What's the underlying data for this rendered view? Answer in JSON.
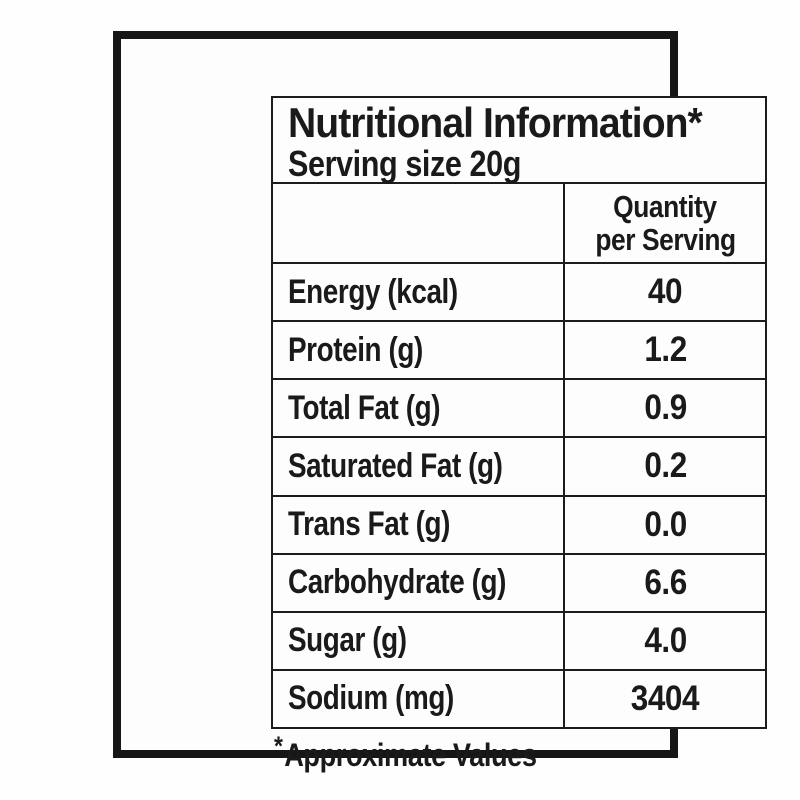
{
  "nutrition_label": {
    "title": "Nutritional Information*",
    "serving": "Serving size 20g",
    "column_header": {
      "line1": "Quantity",
      "line2": "per Serving"
    },
    "rows": [
      {
        "name": "Energy (kcal)",
        "value": "40"
      },
      {
        "name": "Protein (g)",
        "value": "1.2"
      },
      {
        "name": "Total Fat (g)",
        "value": "0.9"
      },
      {
        "name": "Saturated Fat (g)",
        "value": "0.2"
      },
      {
        "name": "Trans Fat (g)",
        "value": "0.0"
      },
      {
        "name": "Carbohydrate (g)",
        "value": "6.6"
      },
      {
        "name": "Sugar (g)",
        "value": "4.0"
      },
      {
        "name": "Sodium (mg)",
        "value": "3404"
      }
    ],
    "footnote_marker": "*",
    "footnote_text": "Approximate Values"
  },
  "chart_data": {
    "type": "table",
    "title": "Nutritional Information*",
    "subtitle": "Serving size 20g",
    "columns": [
      "",
      "Quantity per Serving"
    ],
    "rows": [
      [
        "Energy (kcal)",
        40
      ],
      [
        "Protein (g)",
        1.2
      ],
      [
        "Total Fat (g)",
        0.9
      ],
      [
        "Saturated Fat (g)",
        0.2
      ],
      [
        "Trans Fat (g)",
        0.0
      ],
      [
        "Carbohydrate (g)",
        6.6
      ],
      [
        "Sugar (g)",
        4.0
      ],
      [
        "Sodium (mg)",
        3404
      ]
    ],
    "footnote": "*Approximate Values"
  },
  "colors": {
    "border": "#1c1c1c",
    "text": "#1a1a1a",
    "background": "#fdfdfd"
  }
}
